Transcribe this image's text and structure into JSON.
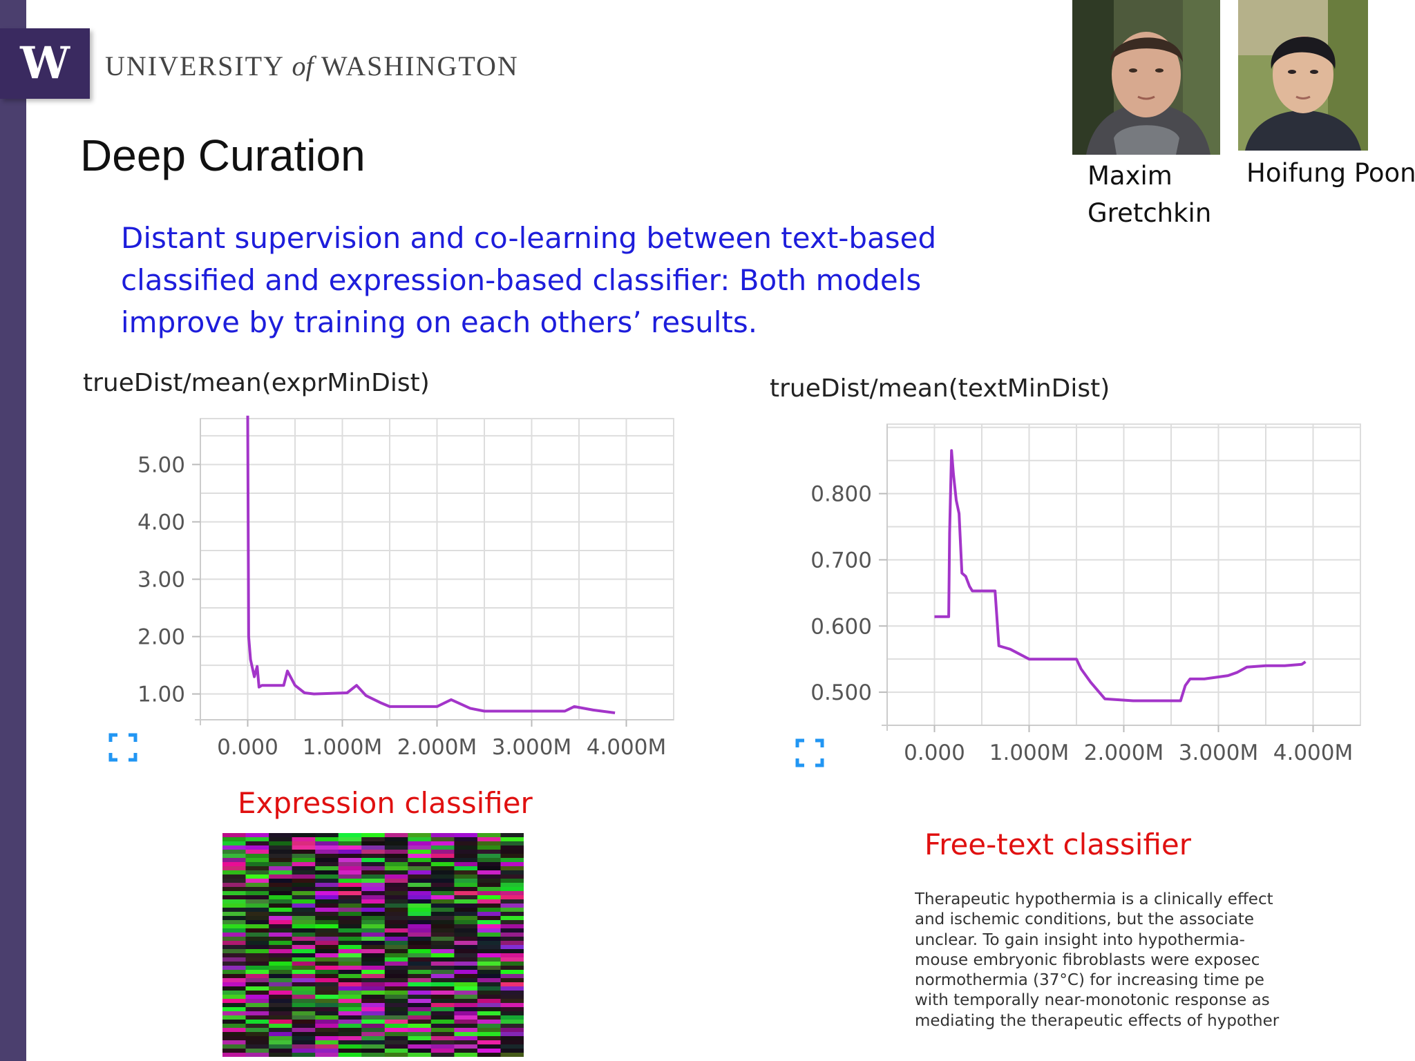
{
  "header": {
    "logo_letter": "W",
    "university_pre": "UNIVERSITY ",
    "university_of": "of",
    "university_post": " WASHINGTON"
  },
  "slide": {
    "title": "Deep Curation",
    "description_lines": [
      "Distant supervision and co-learning between text-based",
      "classified and expression-based classifier: Both models",
      "improve by training on each others’ results."
    ]
  },
  "people": [
    {
      "name_lines": [
        "Maxim",
        "Gretchkin"
      ]
    },
    {
      "name_lines": [
        "Hoifung Poon"
      ]
    }
  ],
  "labels": {
    "expression_classifier": "Expression classifier",
    "free_text_classifier": "Free-text classifier"
  },
  "abstract_lines": [
    "Therapeutic hypothermia is a clinically effect",
    "and ischemic conditions, but the associate",
    "unclear. To gain insight into hypothermia-",
    "mouse embryonic fibroblasts were exposec",
    "normothermia (37°C) for increasing time pe",
    "with temporally near-monotonic response as",
    "mediating the therapeutic effects of hypother"
  ],
  "colors": {
    "sidebar": "#4b3f6e",
    "logo": "#3a2a60",
    "description": "#1d1ddb",
    "red_label": "#e01010",
    "line": "#a335c9",
    "grid": "#dddddd",
    "expand_icon": "#2196f3"
  },
  "chart_data": [
    {
      "type": "line",
      "title": "trueDist/mean(exprMinDist)",
      "xlabel": "",
      "ylabel": "",
      "x_ticks": [
        0,
        1000000,
        2000000,
        3000000,
        4000000
      ],
      "x_tick_labels": [
        "0.000",
        "1.000M",
        "2.000M",
        "3.000M",
        "4.000M"
      ],
      "y_ticks": [
        1,
        2,
        3,
        4,
        5
      ],
      "y_tick_labels": [
        "1.00",
        "2.00",
        "3.00",
        "4.00",
        "5.00"
      ],
      "xlim": [
        -500000,
        4500000
      ],
      "ylim": [
        0.55,
        5.8
      ],
      "grid": true,
      "series": [
        {
          "x": [
            0,
            10000,
            30000,
            70000,
            100000,
            120000,
            150000,
            300000,
            380000,
            420000,
            500000,
            600000,
            700000,
            1050000,
            1150000,
            1250000,
            1400000,
            1500000,
            2000000,
            2150000,
            2350000,
            2500000,
            3000000,
            3350000,
            3450000,
            3650000,
            3880000
          ],
          "y": [
            5.85,
            2.0,
            1.6,
            1.3,
            1.48,
            1.12,
            1.15,
            1.15,
            1.15,
            1.4,
            1.15,
            1.02,
            1.0,
            1.02,
            1.15,
            0.97,
            0.85,
            0.78,
            0.78,
            0.9,
            0.75,
            0.7,
            0.7,
            0.7,
            0.78,
            0.72,
            0.67
          ]
        }
      ]
    },
    {
      "type": "line",
      "title": "trueDist/mean(textMinDist)",
      "xlabel": "",
      "ylabel": "",
      "x_ticks": [
        0,
        1000000,
        2000000,
        3000000,
        4000000
      ],
      "x_tick_labels": [
        "0.000",
        "1.000M",
        "2.000M",
        "3.000M",
        "4.000M"
      ],
      "y_ticks": [
        0.5,
        0.6,
        0.7,
        0.8
      ],
      "y_tick_labels": [
        "0.500",
        "0.600",
        "0.700",
        "0.800"
      ],
      "xlim": [
        -500000,
        4500000
      ],
      "ylim": [
        0.45,
        0.905
      ],
      "grid": true,
      "series": [
        {
          "x": [
            0,
            150000,
            160000,
            180000,
            200000,
            230000,
            260000,
            290000,
            330000,
            370000,
            400000,
            420000,
            520000,
            640000,
            680000,
            800000,
            1000000,
            1500000,
            1550000,
            1650000,
            1800000,
            2100000,
            2600000,
            2650000,
            2700000,
            2850000,
            3100000,
            3200000,
            3300000,
            3500000,
            3700000,
            3880000,
            3920000
          ],
          "y": [
            0.614,
            0.614,
            0.74,
            0.865,
            0.83,
            0.79,
            0.77,
            0.68,
            0.675,
            0.66,
            0.653,
            0.653,
            0.653,
            0.653,
            0.57,
            0.565,
            0.55,
            0.55,
            0.535,
            0.515,
            0.49,
            0.487,
            0.487,
            0.51,
            0.52,
            0.52,
            0.525,
            0.53,
            0.538,
            0.54,
            0.54,
            0.542,
            0.546
          ]
        }
      ]
    }
  ]
}
